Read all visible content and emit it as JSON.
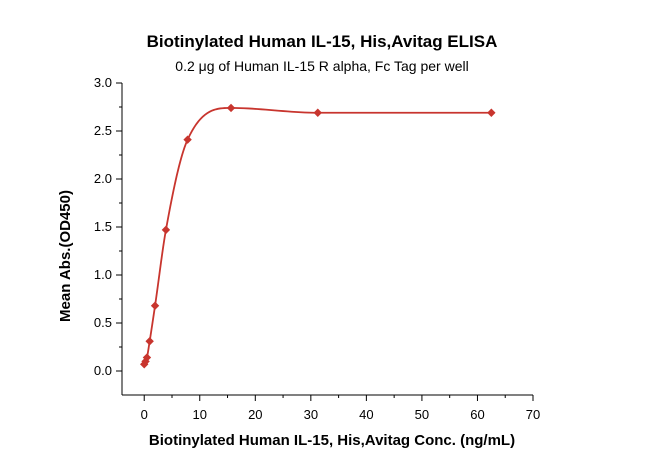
{
  "chart_data": {
    "type": "scatter",
    "title": "Biotinylated Human IL-15, His,Avitag ELISA",
    "subtitle": "0.2 μg of Human IL-15 R alpha, Fc Tag per well",
    "xlabel": "Biotinylated Human IL-15, His,Avitag Conc. (ng/mL)",
    "ylabel": "Mean Abs.(OD450)",
    "xlim": [
      -4,
      70
    ],
    "ylim": [
      -0.25,
      3.0
    ],
    "xticks": [
      0,
      10,
      20,
      30,
      40,
      50,
      60,
      70
    ],
    "yticks": [
      0.0,
      0.5,
      1.0,
      1.5,
      2.0,
      2.5,
      3.0
    ],
    "xtick_labels": [
      "0",
      "10",
      "20",
      "30",
      "40",
      "50",
      "60",
      "70"
    ],
    "ytick_labels": [
      "0.0",
      "0.5",
      "1.0",
      "1.5",
      "2.0",
      "2.5",
      "3.0"
    ],
    "grid": false,
    "series": [
      {
        "marker": "diamond",
        "color": "#c8352e",
        "fit_line": true,
        "x": [
          0.0,
          0.24,
          0.49,
          0.98,
          1.95,
          3.91,
          7.81,
          15.63,
          31.25,
          62.5
        ],
        "y": [
          0.07,
          0.1,
          0.14,
          0.31,
          0.68,
          1.47,
          2.41,
          2.74,
          2.69,
          2.69
        ]
      }
    ]
  }
}
